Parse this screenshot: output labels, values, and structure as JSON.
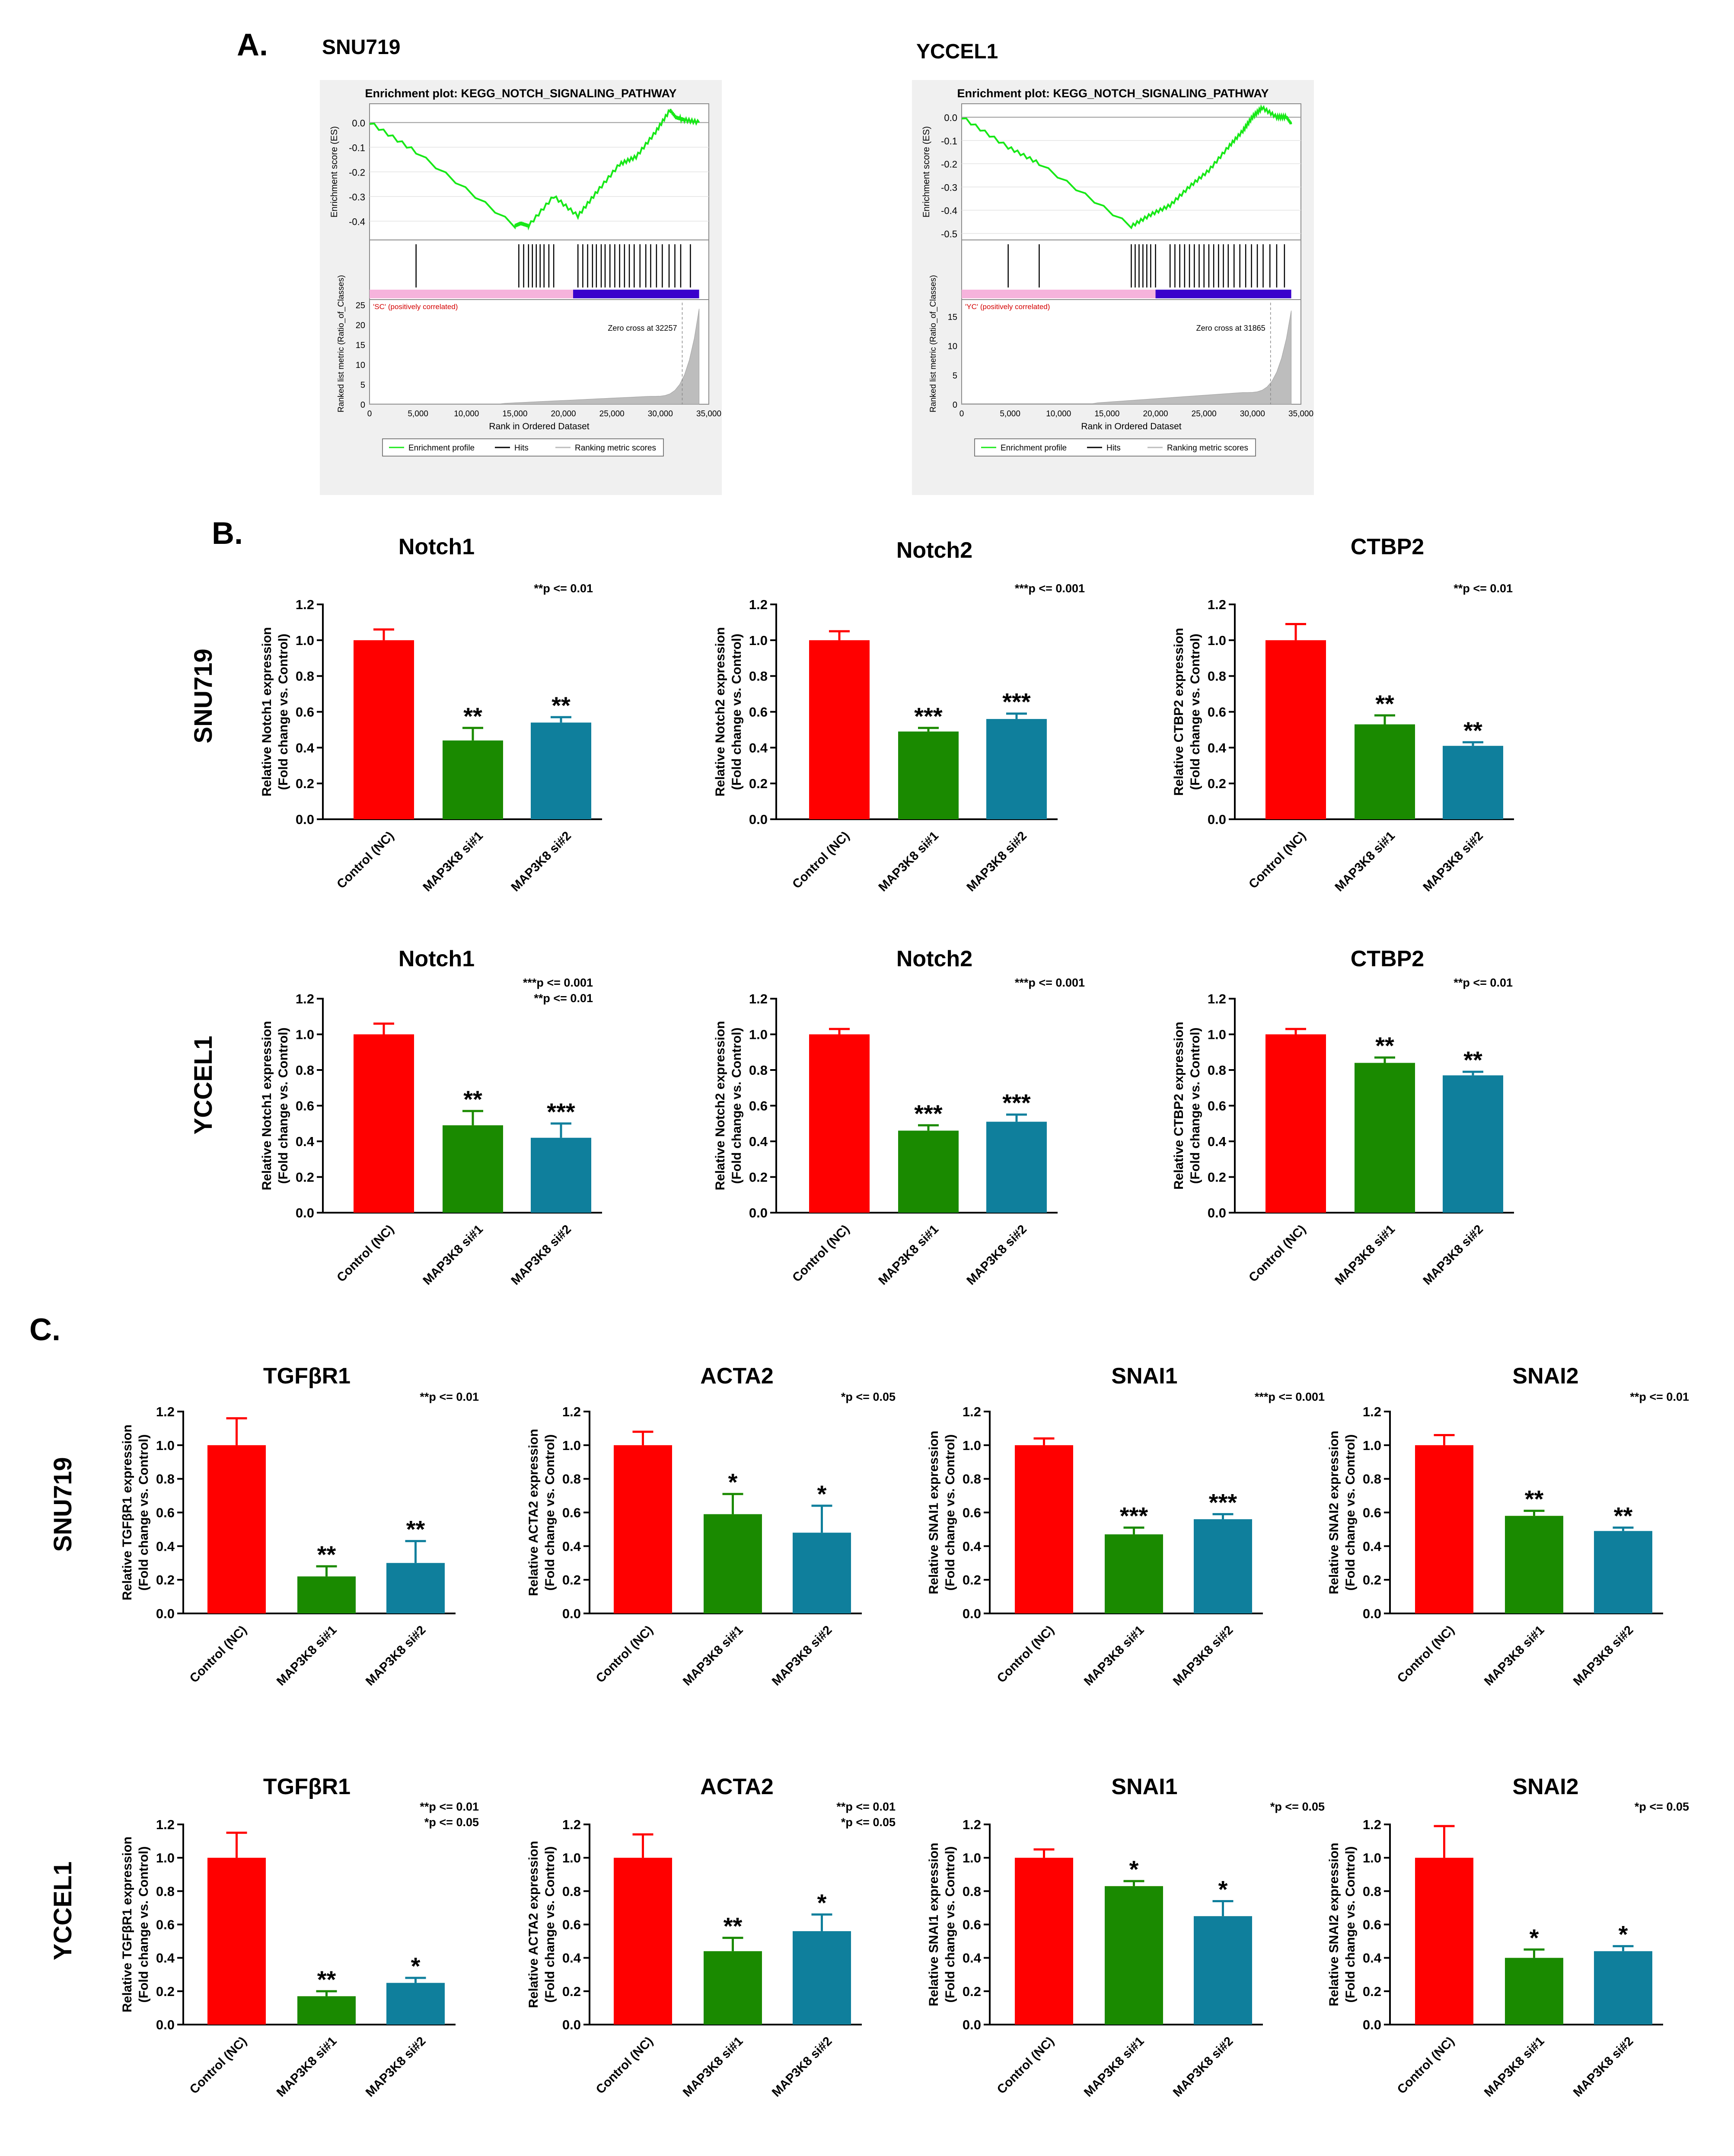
{
  "panels": {
    "A": "A.",
    "B": "B.",
    "C": "C."
  },
  "colors": {
    "control": "#ff0000",
    "si1": "#1a8a00",
    "si2": "#0f7f9c",
    "gsea_line": "#17e817",
    "pink": "#f6b3dc",
    "blue": "#3a00cc",
    "panel_bg": "#f0f0f0"
  },
  "gsea": [
    {
      "cell": "SNU719",
      "title": "Enrichment plot: KEGG_NOTCH_SIGNALING_PATHWAY",
      "es_ylabel": "Enrichment score (ES)",
      "es_ticks": [
        "0.0",
        "-0.1",
        "-0.2",
        "-0.3",
        "-0.4"
      ],
      "metric_ylabel": "Ranked list metric (Ratio_of_Classes)",
      "metric_ticks": [
        "25",
        "20",
        "15",
        "10",
        "5",
        "0"
      ],
      "xlabel": "Rank in Ordered Dataset",
      "x_ticks": [
        "0",
        "5,000",
        "10,000",
        "15,000",
        "20,000",
        "25,000",
        "30,000",
        "35,000"
      ],
      "class_label": "'SC' (positively correlated)",
      "zero_cross": "Zero cross at 32257",
      "legend": [
        "Enrichment profile",
        "Hits",
        "Ranking metric scores"
      ],
      "chart_data": {
        "type": "line",
        "x": [
          0,
          4800,
          15000,
          15600,
          16400,
          19000,
          21500,
          23500,
          25800,
          27500,
          29500,
          31000,
          31600,
          32500,
          34000
        ],
        "y": [
          0.0,
          -0.12,
          -0.42,
          -0.41,
          -0.42,
          -0.3,
          -0.38,
          -0.28,
          -0.17,
          -0.14,
          -0.04,
          0.05,
          0.02,
          0.01,
          0.0
        ],
        "xlim": [
          0,
          35000
        ],
        "ylim": [
          -0.45,
          0.05
        ],
        "hits": [
          4800,
          15400,
          15900,
          16400,
          16800,
          17200,
          17600,
          18000,
          18500,
          19000,
          21500,
          22000,
          22500,
          23000,
          23400,
          23900,
          24300,
          24800,
          25300,
          25800,
          26300,
          26800,
          27300,
          27900,
          28500,
          29000,
          29600,
          30200,
          30900,
          31500,
          32100,
          33100
        ],
        "class_split": 21000,
        "xmax_data": 34000,
        "zero_cross_x": 32257,
        "metric_ylim": [
          0,
          25
        ]
      }
    },
    {
      "cell": "YCCEL1",
      "title": "Enrichment plot: KEGG_NOTCH_SIGNALING_PATHWAY",
      "es_ylabel": "Enrichment score (ES)",
      "es_ticks": [
        "0.0",
        "-0.1",
        "-0.2",
        "-0.3",
        "-0.4",
        "-0.5"
      ],
      "metric_ylabel": "Ranked list metric (Ratio_of_Classes)",
      "metric_ticks": [
        "15",
        "10",
        "5",
        "0"
      ],
      "xlabel": "Rank in Ordered Dataset",
      "x_ticks": [
        "0",
        "5,000",
        "10,000",
        "15,000",
        "20,000",
        "25,000",
        "30,000",
        "35,000"
      ],
      "class_label": "'YC' (positively correlated)",
      "zero_cross": "Zero cross at 31865",
      "legend": [
        "Enrichment profile",
        "Hits",
        "Ranking metric scores"
      ],
      "chart_data": {
        "type": "line",
        "x": [
          0,
          4800,
          8000,
          17500,
          19500,
          21500,
          23500,
          25500,
          27500,
          29000,
          30000,
          31000,
          32500,
          33500,
          34000
        ],
        "y": [
          0.0,
          -0.13,
          -0.2,
          -0.47,
          -0.42,
          -0.38,
          -0.3,
          -0.23,
          -0.13,
          -0.06,
          0.0,
          0.04,
          0.0,
          0.0,
          -0.03
        ],
        "xlim": [
          0,
          35000
        ],
        "ylim": [
          -0.5,
          0.03
        ],
        "hits": [
          4800,
          8000,
          17500,
          17900,
          18300,
          18700,
          19100,
          19500,
          20000,
          21500,
          22000,
          22500,
          23000,
          23500,
          24000,
          24500,
          25000,
          25500,
          26000,
          26500,
          27000,
          27500,
          28100,
          28700,
          29300,
          29900,
          30500,
          31100,
          31800,
          32500,
          33300
        ],
        "class_split": 20000,
        "xmax_data": 34000,
        "zero_cross_x": 31865,
        "metric_ylim": [
          0,
          17
        ]
      }
    }
  ],
  "row_labels": {
    "B_top": "SNU719",
    "B_bottom": "YCCEL1",
    "C_top": "SNU719",
    "C_bottom": "YCCEL1"
  },
  "bar_categories": [
    "Control (NC)",
    "MAP3K8 si#1",
    "MAP3K8 si#2"
  ],
  "bar_ticks": [
    "0.0",
    "0.2",
    "0.4",
    "0.6",
    "0.8",
    "1.0",
    "1.2"
  ],
  "ylabel_line2": "(Fold change vs. Control)",
  "chart_data": [
    {
      "id": "B1",
      "type": "bar",
      "title": "Notch1",
      "ylabel": "Relative Notch1 expression",
      "values": [
        1.0,
        0.44,
        0.54
      ],
      "errors": [
        0.06,
        0.07,
        0.03
      ],
      "stars": [
        "",
        "**",
        "**"
      ],
      "pnote": [
        "**p <= 0.01"
      ],
      "ylim": [
        0,
        1.2
      ]
    },
    {
      "id": "B2",
      "type": "bar",
      "title": "Notch2",
      "ylabel": "Relative Notch2 expression",
      "values": [
        1.0,
        0.49,
        0.56
      ],
      "errors": [
        0.05,
        0.02,
        0.03
      ],
      "stars": [
        "",
        "***",
        "***"
      ],
      "pnote": [
        "***p <= 0.001"
      ],
      "ylim": [
        0,
        1.2
      ]
    },
    {
      "id": "B3",
      "type": "bar",
      "title": "CTBP2",
      "ylabel": "Relative CTBP2 expression",
      "values": [
        1.0,
        0.53,
        0.41
      ],
      "errors": [
        0.09,
        0.05,
        0.02
      ],
      "stars": [
        "",
        "**",
        "**"
      ],
      "pnote": [
        "**p <= 0.01"
      ],
      "ylim": [
        0,
        1.2
      ]
    },
    {
      "id": "B4",
      "type": "bar",
      "title": "Notch1",
      "ylabel": "Relative Notch1 expression",
      "values": [
        1.0,
        0.49,
        0.42
      ],
      "errors": [
        0.06,
        0.08,
        0.08
      ],
      "stars": [
        "",
        "**",
        "***"
      ],
      "pnote": [
        "***p <= 0.001",
        "**p <= 0.01"
      ],
      "ylim": [
        0,
        1.2
      ]
    },
    {
      "id": "B5",
      "type": "bar",
      "title": "Notch2",
      "ylabel": "Relative Notch2 expression",
      "values": [
        1.0,
        0.46,
        0.51
      ],
      "errors": [
        0.03,
        0.03,
        0.04
      ],
      "stars": [
        "",
        "***",
        "***"
      ],
      "pnote": [
        "***p <= 0.001"
      ],
      "ylim": [
        0,
        1.2
      ]
    },
    {
      "id": "B6",
      "type": "bar",
      "title": "CTBP2",
      "ylabel": "Relative CTBP2 expression",
      "values": [
        1.0,
        0.84,
        0.77
      ],
      "errors": [
        0.03,
        0.03,
        0.02
      ],
      "stars": [
        "",
        "**",
        "**"
      ],
      "pnote": [
        "**p <= 0.01"
      ],
      "ylim": [
        0,
        1.2
      ]
    },
    {
      "id": "C1",
      "type": "bar",
      "title": "TGFβR1",
      "ylabel": "Relative TGFβR1 expression",
      "values": [
        1.0,
        0.22,
        0.3
      ],
      "errors": [
        0.16,
        0.06,
        0.13
      ],
      "stars": [
        "",
        "**",
        "**"
      ],
      "pnote": [
        "**p <= 0.01"
      ],
      "ylim": [
        0,
        1.2
      ]
    },
    {
      "id": "C2",
      "type": "bar",
      "title": "ACTA2",
      "ylabel": "Relative ACTA2 expression",
      "values": [
        1.0,
        0.59,
        0.48
      ],
      "errors": [
        0.08,
        0.12,
        0.16
      ],
      "stars": [
        "",
        "*",
        "*"
      ],
      "pnote": [
        "*p <= 0.05"
      ],
      "ylim": [
        0,
        1.2
      ]
    },
    {
      "id": "C3",
      "type": "bar",
      "title": "SNAI1",
      "ylabel": "Relative SNAI1 expression",
      "values": [
        1.0,
        0.47,
        0.56
      ],
      "errors": [
        0.04,
        0.04,
        0.03
      ],
      "stars": [
        "",
        "***",
        "***"
      ],
      "pnote": [
        "***p <= 0.001"
      ],
      "ylim": [
        0,
        1.2
      ]
    },
    {
      "id": "C4",
      "type": "bar",
      "title": "SNAI2",
      "ylabel": "Relative SNAI2 expression",
      "values": [
        1.0,
        0.58,
        0.49
      ],
      "errors": [
        0.06,
        0.03,
        0.02
      ],
      "stars": [
        "",
        "**",
        "**"
      ],
      "pnote": [
        "**p <= 0.01"
      ],
      "ylim": [
        0,
        1.2
      ]
    },
    {
      "id": "C5",
      "type": "bar",
      "title": "TGFβR1",
      "ylabel": "Relative TGFβR1 expression",
      "values": [
        1.0,
        0.17,
        0.25
      ],
      "errors": [
        0.15,
        0.03,
        0.03
      ],
      "stars": [
        "",
        "**",
        "*"
      ],
      "pnote": [
        "**p <= 0.01",
        "*p <= 0.05"
      ],
      "ylim": [
        0,
        1.2
      ]
    },
    {
      "id": "C6",
      "type": "bar",
      "title": "ACTA2",
      "ylabel": "Relative ACTA2 expression",
      "values": [
        1.0,
        0.44,
        0.56
      ],
      "errors": [
        0.14,
        0.08,
        0.1
      ],
      "stars": [
        "",
        "**",
        "*"
      ],
      "pnote": [
        "**p <= 0.01",
        "*p <= 0.05"
      ],
      "ylim": [
        0,
        1.2
      ]
    },
    {
      "id": "C7",
      "type": "bar",
      "title": "SNAI1",
      "ylabel": "Relative SNAI1 expression",
      "values": [
        1.0,
        0.83,
        0.65
      ],
      "errors": [
        0.05,
        0.03,
        0.09
      ],
      "stars": [
        "",
        "*",
        "*"
      ],
      "pnote": [
        "*p <= 0.05"
      ],
      "ylim": [
        0,
        1.2
      ]
    },
    {
      "id": "C8",
      "type": "bar",
      "title": "SNAI2",
      "ylabel": "Relative SNAI2 expression",
      "values": [
        1.0,
        0.4,
        0.44
      ],
      "errors": [
        0.19,
        0.05,
        0.03
      ],
      "stars": [
        "",
        "*",
        "*"
      ],
      "pnote": [
        "*p <= 0.05"
      ],
      "ylim": [
        0,
        1.2
      ]
    }
  ]
}
